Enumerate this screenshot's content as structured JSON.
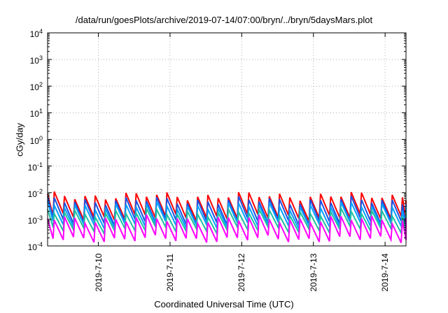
{
  "chart_data": {
    "type": "line",
    "title": "/data/run/goesPlots/archive/2019-07-14/07:00/bryn/../bryn/5daysMars.plot",
    "xlabel": "Coordinated Universal Time (UTC)",
    "ylabel": "cGy/day",
    "yscale": "log",
    "ylim": [
      0.0001,
      10000
    ],
    "y_ticks": [
      {
        "base": "10",
        "exp": "4",
        "value": 10000
      },
      {
        "base": "10",
        "exp": "3",
        "value": 1000
      },
      {
        "base": "10",
        "exp": "2",
        "value": 100
      },
      {
        "base": "10",
        "exp": "1",
        "value": 10
      },
      {
        "base": "10",
        "exp": "0",
        "value": 1
      },
      {
        "base": "10",
        "exp": "-1",
        "value": 0.1
      },
      {
        "base": "10",
        "exp": "-2",
        "value": 0.01
      },
      {
        "base": "10",
        "exp": "-3",
        "value": 0.001
      },
      {
        "base": "10",
        "exp": "-4",
        "value": 0.0001
      }
    ],
    "xlim": [
      "2019-07-09T07:00",
      "2019-07-14T07:00"
    ],
    "x_ticks": [
      "2019-7-10",
      "2019-7-11",
      "2019-7-12",
      "2019-7-13",
      "2019-7-14"
    ],
    "grid": true,
    "pattern": "sawtooth, approx. 7 cycles per day",
    "series": [
      {
        "color": "#ff0000",
        "low": 0.0012,
        "high": 0.0075
      },
      {
        "color": "#1f4fe0",
        "low": 0.0008,
        "high": 0.005
      },
      {
        "color": "#00a0ff",
        "low": 0.0006,
        "high": 0.0032
      },
      {
        "color": "#20c0a0",
        "low": 0.0004,
        "high": 0.0018
      },
      {
        "color": "#ff00ff",
        "low": 0.00018,
        "high": 0.001
      }
    ]
  }
}
